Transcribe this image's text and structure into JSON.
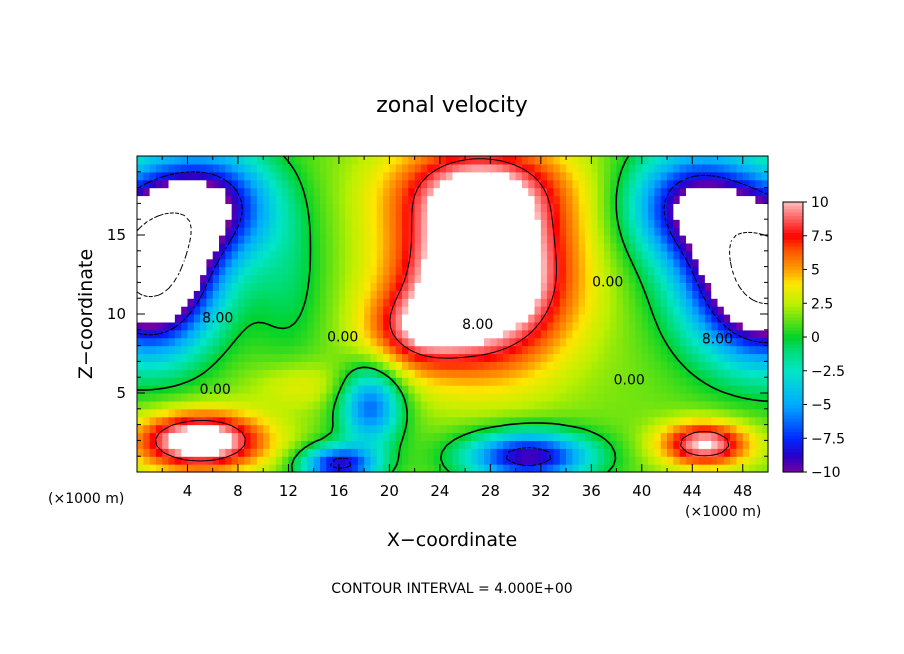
{
  "chart_data": {
    "type": "heatmap",
    "title": "zonal velocity",
    "xlabel": "X−coordinate",
    "ylabel": "Z−coordinate",
    "x_unit_left": "(×1000 m)",
    "x_unit_right": "(×1000 m)",
    "xlim": [
      0,
      50
    ],
    "ylim": [
      0,
      20
    ],
    "xticks": [
      "4",
      "8",
      "12",
      "16",
      "20",
      "24",
      "28",
      "32",
      "36",
      "40",
      "44",
      "48"
    ],
    "xtick_values": [
      4,
      8,
      12,
      16,
      20,
      24,
      28,
      32,
      36,
      40,
      44,
      48
    ],
    "yticks": [
      "5",
      "10",
      "15"
    ],
    "ytick_values": [
      5,
      10,
      15
    ],
    "colorbar": {
      "range": [
        -10,
        10
      ],
      "ticks": [
        "10",
        "7.5",
        "5",
        "2.5",
        "0",
        "−2.5",
        "−5",
        "−7.5",
        "−10"
      ],
      "tick_values": [
        10,
        7.5,
        5,
        2.5,
        0,
        -2.5,
        -5,
        -7.5,
        -10
      ]
    },
    "contour_interval_text": "CONTOUR INTERVAL = 4.000E+00",
    "contour_labels": [
      {
        "text": "8.00",
        "x": 6.4,
        "y": 9.7
      },
      {
        "text": "0.00",
        "x": 6.2,
        "y": 5.2
      },
      {
        "text": "0.00",
        "x": 16.3,
        "y": 8.5
      },
      {
        "text": "8.00",
        "x": 27.0,
        "y": 9.3
      },
      {
        "text": "0.00",
        "x": 37.3,
        "y": 12.0
      },
      {
        "text": "0.00",
        "x": 39.0,
        "y": 5.8
      },
      {
        "text": "8.00",
        "x": 46.0,
        "y": 8.4
      }
    ]
  }
}
